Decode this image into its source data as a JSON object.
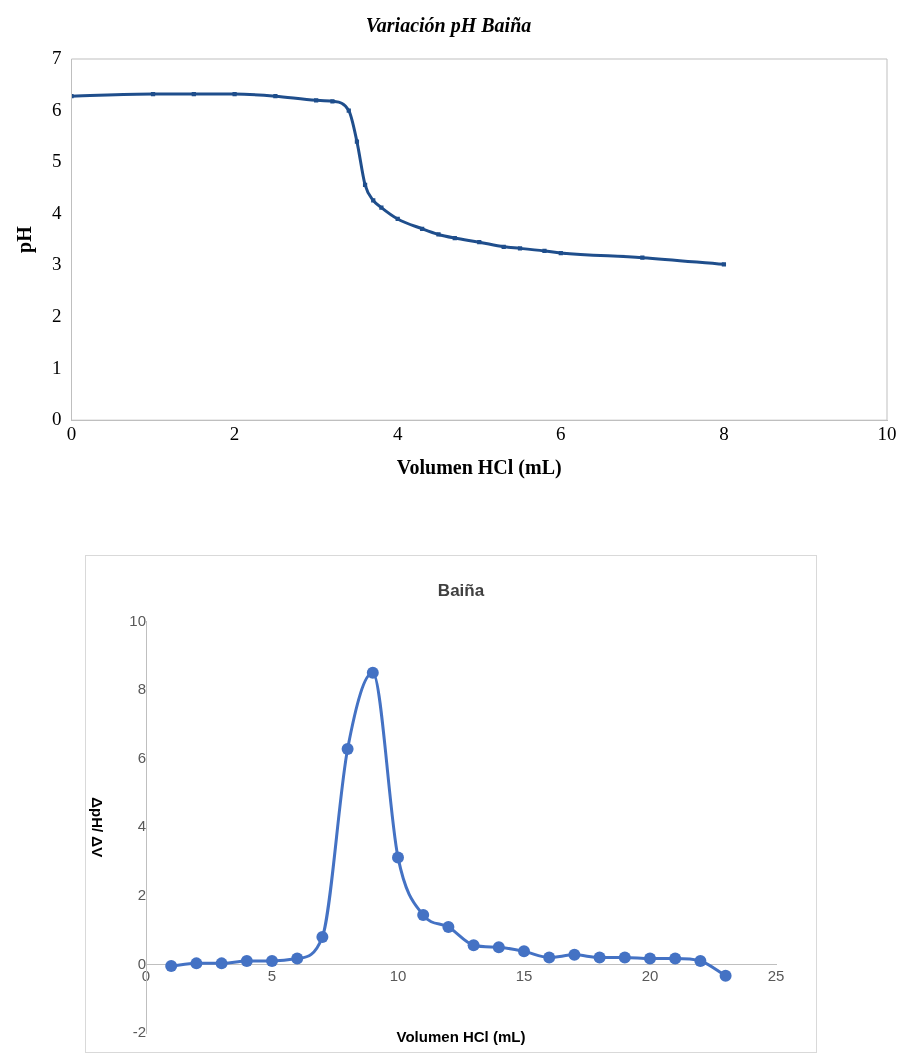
{
  "chart_data": [
    {
      "type": "line",
      "title": "Variación pH Baiña",
      "xlabel": "Volumen HCl (mL)",
      "ylabel": "pH",
      "x": [
        0,
        1,
        1.5,
        2,
        2.5,
        3,
        3.2,
        3.4,
        3.5,
        3.6,
        3.7,
        3.8,
        4,
        4.3,
        4.5,
        4.7,
        5,
        5.3,
        5.5,
        5.8,
        6,
        7,
        8
      ],
      "series": [
        {
          "color": "#1f4e8c",
          "values": [
            6.28,
            6.32,
            6.32,
            6.32,
            6.28,
            6.2,
            6.18,
            6.0,
            5.4,
            4.56,
            4.26,
            4.12,
            3.9,
            3.71,
            3.6,
            3.53,
            3.45,
            3.36,
            3.33,
            3.28,
            3.24,
            3.15,
            3.02
          ]
        }
      ],
      "xlim": [
        0,
        10
      ],
      "xticks": [
        0,
        2,
        4,
        6,
        8,
        10
      ],
      "ylim": [
        0,
        7
      ],
      "yticks": [
        0,
        1,
        2,
        3,
        4,
        5,
        6,
        7
      ],
      "grid": false,
      "legend": false,
      "marker": "square",
      "line_style": "solid"
    },
    {
      "type": "line",
      "title": "Baiña",
      "xlabel": "Volumen HCl (mL)",
      "ylabel": "ΔpH/ ΔV",
      "x": [
        1,
        2,
        3,
        4,
        5,
        6,
        7,
        8,
        9,
        10,
        11,
        12,
        13,
        14,
        15,
        16,
        17,
        18,
        19,
        20,
        21,
        22,
        23
      ],
      "series": [
        {
          "color": "#4472c4",
          "values": [
            -0.05,
            0.03,
            0.03,
            0.1,
            0.1,
            0.17,
            0.8,
            6.28,
            8.5,
            3.12,
            1.44,
            1.09,
            0.56,
            0.5,
            0.38,
            0.2,
            0.28,
            0.2,
            0.2,
            0.17,
            0.17,
            0.1,
            -0.33
          ]
        }
      ],
      "xlim": [
        0,
        25
      ],
      "xticks": [
        0,
        5,
        10,
        15,
        20,
        25
      ],
      "ylim": [
        -2,
        10
      ],
      "yticks": [
        -2,
        0,
        2,
        4,
        6,
        8,
        10
      ],
      "grid": false,
      "legend": false,
      "marker": "circle",
      "line_style": "solid"
    }
  ]
}
